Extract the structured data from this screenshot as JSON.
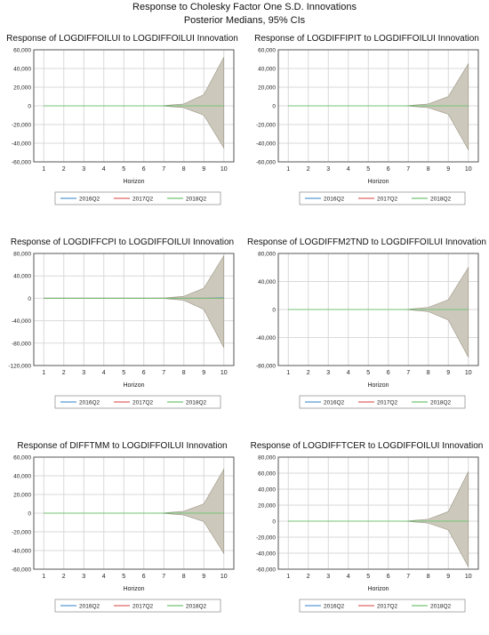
{
  "figure": {
    "title": "Response to Cholesky Factor One S.D. Innovations",
    "subtitle": "Posterior Medians, 95% CIs"
  },
  "colors": {
    "band_fill": "#cdc8bc",
    "band_stroke": "#9a9585",
    "grid": "#d9d9d9",
    "axis": "#555555",
    "series_2016Q2": "#5b9bd5",
    "series_2017Q2": "#e06666",
    "series_2018Q2": "#74c476"
  },
  "chart_data": [
    {
      "type": "line",
      "title": "Response of LOGDIFFOILUI to LOGDIFFOILUI Innovation",
      "xlabel": "Horizon",
      "ylabel": "",
      "x": [
        1,
        2,
        3,
        4,
        5,
        6,
        7,
        8,
        9,
        10
      ],
      "ylim": [
        -60000,
        60000
      ],
      "yticks": [
        60000,
        40000,
        20000,
        0,
        -20000,
        -40000,
        -60000
      ],
      "ytick_labels": [
        "60,000",
        "40,000",
        "20,000",
        "0",
        "-20,000",
        "-40,000",
        "-60,000"
      ],
      "band_upper": [
        0,
        0,
        0,
        0,
        0,
        0,
        300,
        2000,
        12000,
        52000
      ],
      "band_lower": [
        0,
        0,
        0,
        0,
        0,
        0,
        -300,
        -2000,
        -10000,
        -45000
      ],
      "series": [
        {
          "name": "2016Q2",
          "values": [
            0,
            0,
            0,
            0,
            0,
            0,
            0,
            0,
            0,
            0
          ]
        },
        {
          "name": "2017Q2",
          "values": [
            0,
            0,
            0,
            0,
            0,
            0,
            0,
            0,
            0,
            0
          ]
        },
        {
          "name": "2018Q2",
          "values": [
            0,
            0,
            0,
            0,
            0,
            0,
            0,
            0,
            0,
            0
          ]
        }
      ],
      "legend": [
        "2016Q2",
        "2017Q2",
        "2018Q2"
      ],
      "legend_position": "bottom"
    },
    {
      "type": "line",
      "title": "Response of LOGDIFFIPIT to LOGDIFFOILUI Innovation",
      "xlabel": "Horizon",
      "ylabel": "",
      "x": [
        1,
        2,
        3,
        4,
        5,
        6,
        7,
        8,
        9,
        10
      ],
      "ylim": [
        -60000,
        60000
      ],
      "yticks": [
        60000,
        40000,
        20000,
        0,
        -20000,
        -40000,
        -60000
      ],
      "ytick_labels": [
        "60,000",
        "40,000",
        "20,000",
        "0",
        "-20,000",
        "-40,000",
        "-60,000"
      ],
      "band_upper": [
        0,
        0,
        0,
        0,
        0,
        0,
        300,
        2000,
        10000,
        45000
      ],
      "band_lower": [
        0,
        0,
        0,
        0,
        0,
        0,
        -300,
        -2000,
        -9000,
        -47000
      ],
      "series": [
        {
          "name": "2016Q2",
          "values": [
            0,
            0,
            0,
            0,
            0,
            0,
            0,
            0,
            0,
            0
          ]
        },
        {
          "name": "2017Q2",
          "values": [
            0,
            0,
            0,
            0,
            0,
            0,
            0,
            0,
            0,
            0
          ]
        },
        {
          "name": "2018Q2",
          "values": [
            0,
            0,
            0,
            0,
            0,
            0,
            0,
            0,
            0,
            0
          ]
        }
      ],
      "legend": [
        "2016Q2",
        "2017Q2",
        "2018Q2"
      ],
      "legend_position": "bottom"
    },
    {
      "type": "line",
      "title": "Response of LOGDIFFCPI to LOGDIFFOILUI Innovation",
      "xlabel": "Horizon",
      "ylabel": "",
      "x": [
        1,
        2,
        3,
        4,
        5,
        6,
        7,
        8,
        9,
        10
      ],
      "ylim": [
        -120000,
        80000
      ],
      "yticks": [
        80000,
        40000,
        0,
        -40000,
        -80000,
        -120000
      ],
      "ytick_labels": [
        "80,000",
        "40,000",
        "0",
        "-40,000",
        "-80,000",
        "-120,000"
      ],
      "band_upper": [
        0,
        0,
        0,
        0,
        0,
        0,
        500,
        3500,
        18000,
        76000
      ],
      "band_lower": [
        0,
        0,
        0,
        0,
        0,
        0,
        -500,
        -3500,
        -20000,
        -88000
      ],
      "series": [
        {
          "name": "2016Q2",
          "values": [
            0,
            0,
            0,
            0,
            0,
            0,
            0,
            0,
            0,
            1000
          ]
        },
        {
          "name": "2017Q2",
          "values": [
            0,
            0,
            0,
            0,
            0,
            0,
            0,
            0,
            0,
            0
          ]
        },
        {
          "name": "2018Q2",
          "values": [
            0,
            0,
            0,
            0,
            0,
            0,
            0,
            0,
            0,
            0
          ]
        }
      ],
      "legend": [
        "2016Q2",
        "2017Q2",
        "2018Q2"
      ],
      "legend_position": "bottom"
    },
    {
      "type": "line",
      "title": "Response of LOGDIFFM2TND to LOGDIFFOILUI Innovation",
      "xlabel": "Horizon",
      "ylabel": "",
      "x": [
        1,
        2,
        3,
        4,
        5,
        6,
        7,
        8,
        9,
        10
      ],
      "ylim": [
        -80000,
        80000
      ],
      "yticks": [
        80000,
        40000,
        0,
        -40000,
        -80000
      ],
      "ytick_labels": [
        "80,000",
        "40,000",
        "0",
        "-40,000",
        "-80,000"
      ],
      "band_upper": [
        0,
        0,
        0,
        0,
        0,
        0,
        400,
        3000,
        14000,
        60000
      ],
      "band_lower": [
        0,
        0,
        0,
        0,
        0,
        0,
        -400,
        -3000,
        -15000,
        -68000
      ],
      "series": [
        {
          "name": "2016Q2",
          "values": [
            0,
            0,
            0,
            0,
            0,
            0,
            0,
            0,
            0,
            0
          ]
        },
        {
          "name": "2017Q2",
          "values": [
            0,
            0,
            0,
            0,
            0,
            0,
            0,
            0,
            0,
            0
          ]
        },
        {
          "name": "2018Q2",
          "values": [
            0,
            0,
            0,
            0,
            0,
            0,
            0,
            0,
            0,
            0
          ]
        }
      ],
      "legend": [
        "2016Q2",
        "2017Q2",
        "2018Q2"
      ],
      "legend_position": "bottom"
    },
    {
      "type": "line",
      "title": "Response of DIFFTMM to LOGDIFFOILUI Innovation",
      "xlabel": "Horizon",
      "ylabel": "",
      "x": [
        1,
        2,
        3,
        4,
        5,
        6,
        7,
        8,
        9,
        10
      ],
      "ylim": [
        -60000,
        60000
      ],
      "yticks": [
        60000,
        40000,
        20000,
        0,
        -20000,
        -40000,
        -60000
      ],
      "ytick_labels": [
        "60,000",
        "40,000",
        "20,000",
        "0",
        "-20,000",
        "-40,000",
        "-60,000"
      ],
      "band_upper": [
        0,
        0,
        0,
        0,
        0,
        0,
        300,
        2000,
        10000,
        47000
      ],
      "band_lower": [
        0,
        0,
        0,
        0,
        0,
        0,
        -300,
        -2000,
        -9000,
        -43000
      ],
      "series": [
        {
          "name": "2016Q2",
          "values": [
            0,
            0,
            0,
            0,
            0,
            0,
            0,
            0,
            0,
            0
          ]
        },
        {
          "name": "2017Q2",
          "values": [
            0,
            0,
            0,
            0,
            0,
            0,
            0,
            0,
            0,
            0
          ]
        },
        {
          "name": "2018Q2",
          "values": [
            0,
            0,
            0,
            0,
            0,
            0,
            0,
            0,
            0,
            0
          ]
        }
      ],
      "legend": [
        "2016Q2",
        "2017Q2",
        "2018Q2"
      ],
      "legend_position": "bottom"
    },
    {
      "type": "line",
      "title": "Response of LOGDIFFTCER to LOGDIFFOILUI Innovation",
      "xlabel": "Horizon",
      "ylabel": "",
      "x": [
        1,
        2,
        3,
        4,
        5,
        6,
        7,
        8,
        9,
        10
      ],
      "ylim": [
        -60000,
        80000
      ],
      "yticks": [
        80000,
        60000,
        40000,
        20000,
        0,
        -20000,
        -40000,
        -60000
      ],
      "ytick_labels": [
        "80,000",
        "60,000",
        "40,000",
        "20,000",
        "0",
        "-20,000",
        "-40,000",
        "-60,000"
      ],
      "band_upper": [
        0,
        0,
        0,
        0,
        0,
        0,
        400,
        2500,
        12000,
        62000
      ],
      "band_lower": [
        0,
        0,
        0,
        0,
        0,
        0,
        -400,
        -2500,
        -11000,
        -57000
      ],
      "series": [
        {
          "name": "2016Q2",
          "values": [
            0,
            0,
            0,
            0,
            0,
            0,
            0,
            0,
            0,
            0
          ]
        },
        {
          "name": "2017Q2",
          "values": [
            0,
            0,
            0,
            0,
            0,
            0,
            0,
            0,
            0,
            0
          ]
        },
        {
          "name": "2018Q2",
          "values": [
            0,
            0,
            0,
            0,
            0,
            0,
            0,
            0,
            0,
            0
          ]
        }
      ],
      "legend": [
        "2016Q2",
        "2017Q2",
        "2018Q2"
      ],
      "legend_position": "bottom"
    }
  ]
}
